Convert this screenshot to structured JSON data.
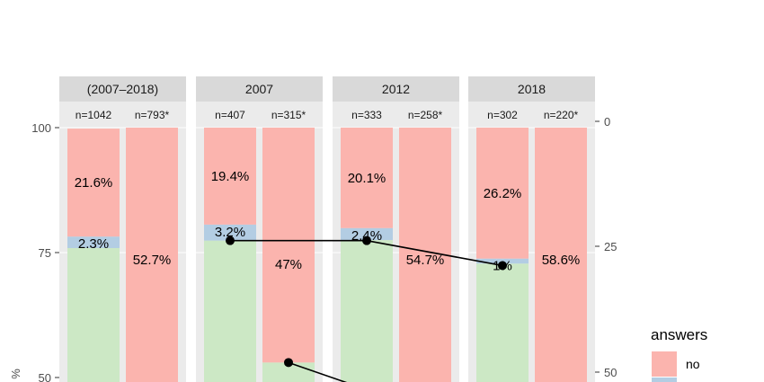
{
  "colors": {
    "green": "#cce8c5",
    "blue": "#b3cde3",
    "red": "#fbb4ae",
    "panel_bg": "#ebebeb",
    "strip_bg": "#d9d9d9",
    "line": "#000000"
  },
  "chart_data": {
    "type": "bar",
    "ylim": [
      0,
      100
    ],
    "left_axis": {
      "ticks": [
        50,
        75,
        100
      ],
      "label_partial": "%"
    },
    "right_axis": {
      "ticks": [
        0,
        25,
        50
      ],
      "reversed": true
    },
    "legend": {
      "title": "answers",
      "entries": [
        "no"
      ]
    },
    "panels": [
      {
        "strip": "(2007–2018)",
        "bars": [
          {
            "n_label": "n=1042",
            "segments": [
              {
                "answer": "green",
                "value": 75.9
              },
              {
                "answer": "blue",
                "value": 2.3,
                "label": "2.3%"
              },
              {
                "answer": "red",
                "value": 21.6,
                "label": "21.6%"
              }
            ]
          },
          {
            "n_label": "n=793*",
            "segments": [
              {
                "answer": "red_top",
                "value": 52.7,
                "label": "52.7%"
              }
            ]
          }
        ]
      },
      {
        "strip": "2007",
        "bars": [
          {
            "n_label": "n=407",
            "segments": [
              {
                "answer": "green",
                "value": 77.4
              },
              {
                "answer": "blue",
                "value": 3.2,
                "label": "3.2%"
              },
              {
                "answer": "red",
                "value": 19.4,
                "label": "19.4%"
              }
            ]
          },
          {
            "n_label": "n=315*",
            "segments": [
              {
                "answer": "green_top",
                "value": 53.0
              },
              {
                "answer": "red",
                "value": 47.0,
                "label": "47%"
              }
            ]
          }
        ],
        "points": [
          {
            "bar": 0,
            "y": 77.4
          },
          {
            "bar": 1,
            "y": 53.0
          }
        ]
      },
      {
        "strip": "2012",
        "bars": [
          {
            "n_label": "n=333",
            "segments": [
              {
                "answer": "green",
                "value": 77.5
              },
              {
                "answer": "blue",
                "value": 2.4,
                "label": "2.4%"
              },
              {
                "answer": "red",
                "value": 20.1,
                "label": "20.1%"
              }
            ]
          },
          {
            "n_label": "n=258*",
            "segments": [
              {
                "answer": "red_top",
                "value": 54.7,
                "label": "54.7%"
              }
            ]
          }
        ],
        "points": [
          {
            "bar": 0,
            "y": 77.4
          }
        ]
      },
      {
        "strip": "2018",
        "bars": [
          {
            "n_label": "n=302",
            "segments": [
              {
                "answer": "green",
                "value": 72.8
              },
              {
                "answer": "blue",
                "value": 1.0,
                "label": "1%"
              },
              {
                "answer": "red",
                "value": 26.2,
                "label": "26.2%"
              }
            ]
          },
          {
            "n_label": "n=220*",
            "segments": [
              {
                "answer": "red_top",
                "value": 58.6,
                "label": "58.6%"
              }
            ]
          }
        ],
        "points": [
          {
            "bar": 0,
            "y": 72.4
          }
        ]
      }
    ]
  }
}
